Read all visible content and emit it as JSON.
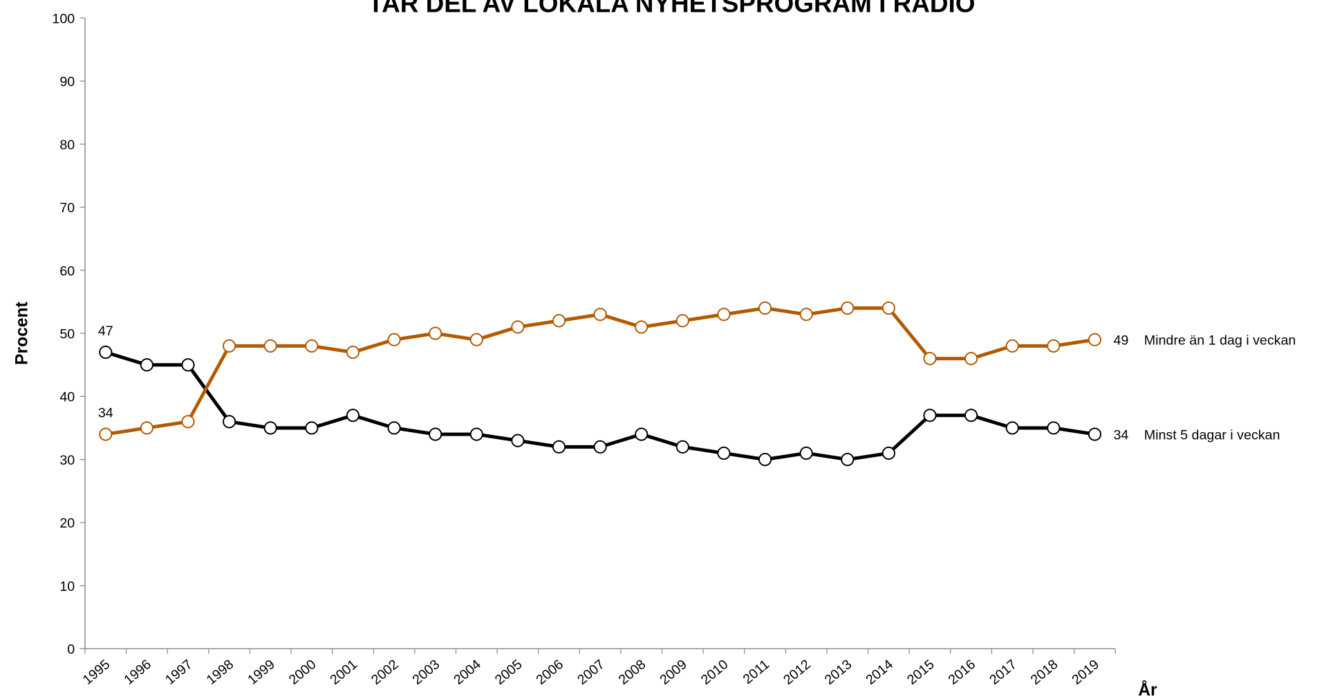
{
  "chart_data": {
    "type": "line",
    "title": "TAR DEL AV LOKALA NYHETSPROGRAM I RADIO",
    "y_label": "Procent",
    "x_label": "År",
    "categories": [
      "1995",
      "1996",
      "1997",
      "1998",
      "1999",
      "2000",
      "2001",
      "2002",
      "2003",
      "2004",
      "2005",
      "2006",
      "2007",
      "2008",
      "2009",
      "2010",
      "2011",
      "2012",
      "2013",
      "2014",
      "2015",
      "2016",
      "2017",
      "2018",
      "2019"
    ],
    "series": [
      {
        "name": "Minst 5 dagar i veckan",
        "color": "#000000",
        "values": [
          47,
          45,
          45,
          36,
          35,
          35,
          37,
          35,
          34,
          34,
          33,
          32,
          32,
          34,
          32,
          31,
          30,
          31,
          30,
          31,
          37,
          37,
          35,
          35,
          34
        ]
      },
      {
        "name": "Mindre än 1 dag i veckan",
        "color": "#b35a00",
        "values": [
          34,
          35,
          36,
          48,
          48,
          48,
          47,
          49,
          50,
          49,
          51,
          52,
          53,
          51,
          52,
          53,
          54,
          53,
          54,
          54,
          46,
          46,
          48,
          48,
          49
        ]
      }
    ],
    "ylim": [
      0,
      100
    ],
    "yticks": [
      0,
      10,
      20,
      30,
      40,
      50,
      60,
      70,
      80,
      90,
      100
    ],
    "grid": false
  }
}
